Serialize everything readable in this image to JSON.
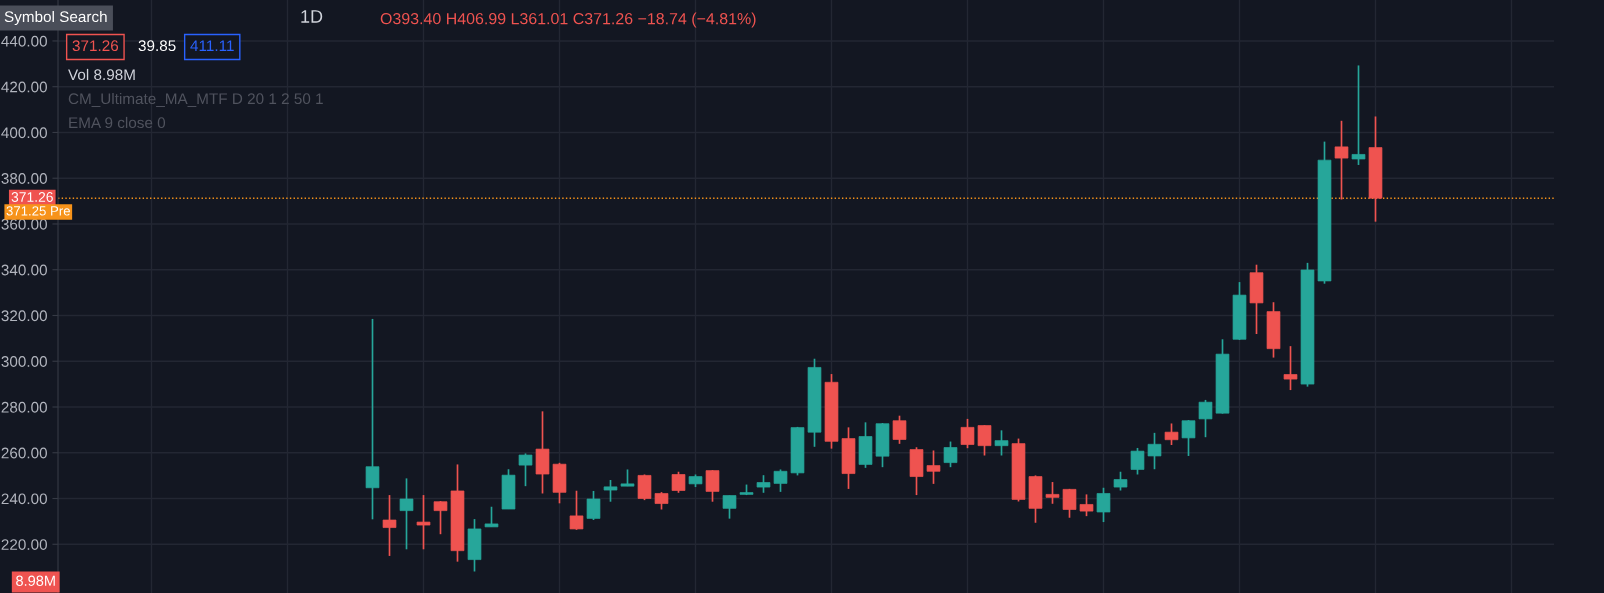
{
  "chart_data": {
    "type": "candlestick",
    "title": "1D",
    "categories": [
      null,
      null,
      null,
      null,
      null,
      null,
      null,
      null,
      null,
      null,
      null,
      null,
      null,
      null,
      null,
      null,
      null,
      null,
      null,
      null,
      null,
      null,
      null,
      null,
      null,
      null,
      null,
      null,
      null,
      null,
      null,
      null,
      null,
      null,
      null,
      null,
      null,
      null,
      null,
      null,
      null,
      null,
      null,
      null,
      null,
      null,
      null,
      null,
      null,
      null,
      null,
      null,
      null,
      null,
      null,
      null,
      null,
      null,
      null,
      null,
      null,
      null,
      null,
      null,
      null,
      null,
      null,
      null,
      null,
      null,
      null,
      null,
      null,
      null,
      null,
      null,
      null,
      null,
      null,
      null,
      null,
      null,
      null,
      null,
      null,
      null,
      null,
      null
    ],
    "ohlc": [
      null,
      null,
      null,
      null,
      null,
      null,
      null,
      null,
      null,
      null,
      null,
      null,
      null,
      null,
      null,
      null,
      null,
      null,
      [
        244.7,
        318.5,
        230.9,
        253.9
      ],
      [
        230.6,
        241.5,
        214.9,
        227.3
      ],
      [
        234.7,
        248.8,
        217.8,
        239.8
      ],
      [
        229.7,
        241.5,
        217.8,
        228.4
      ],
      [
        238.6,
        238.9,
        224.4,
        234.7
      ],
      [
        243.3,
        254.9,
        212.4,
        217.2
      ],
      [
        213.3,
        231.0,
        208.1,
        226.7
      ],
      [
        227.6,
        236.4,
        227.6,
        228.9
      ],
      [
        235.4,
        252.8,
        235.4,
        250.2
      ],
      [
        254.6,
        259.7,
        245.4,
        259.0
      ],
      [
        261.6,
        278.1,
        242.2,
        250.7
      ],
      [
        255.0,
        255.6,
        237.9,
        242.7
      ],
      [
        232.4,
        243.4,
        226.3,
        226.7
      ],
      [
        231.3,
        243.3,
        230.6,
        239.8
      ],
      [
        243.7,
        248.1,
        238.6,
        245.1
      ],
      [
        245.4,
        252.7,
        245.4,
        246.4
      ],
      [
        250.1,
        250.5,
        239.3,
        240.0
      ],
      [
        242.2,
        242.8,
        235.2,
        237.8
      ],
      [
        250.5,
        251.7,
        242.5,
        243.5
      ],
      [
        246.4,
        250.5,
        245.0,
        249.6
      ],
      [
        252.2,
        252.4,
        238.6,
        243.1
      ],
      [
        235.7,
        241.3,
        231.2,
        241.3
      ],
      [
        241.8,
        246.1,
        241.5,
        242.6
      ],
      [
        245.0,
        250.2,
        242.5,
        247.0
      ],
      [
        246.6,
        252.7,
        242.9,
        251.9
      ],
      [
        251.2,
        271.3,
        250.1,
        271.0
      ],
      [
        269.0,
        301.1,
        262.6,
        297.3
      ],
      [
        290.8,
        294.4,
        261.8,
        265.0
      ],
      [
        266.2,
        271.1,
        244.2,
        250.9
      ],
      [
        254.9,
        273.3,
        253.4,
        267.1
      ],
      [
        258.5,
        273.0,
        253.7,
        272.7
      ],
      [
        274.0,
        276.2,
        263.9,
        265.8
      ],
      [
        261.4,
        262.4,
        241.5,
        249.6
      ],
      [
        254.4,
        261.0,
        246.4,
        251.9
      ],
      [
        255.7,
        264.9,
        253.7,
        262.3
      ],
      [
        271.1,
        274.8,
        262.0,
        263.6
      ],
      [
        271.9,
        272.0,
        258.8,
        263.1
      ],
      [
        263.1,
        269.8,
        258.8,
        265.3
      ],
      [
        264.0,
        266.2,
        238.7,
        239.6
      ],
      [
        249.6,
        250.1,
        229.4,
        235.7
      ],
      [
        241.8,
        247.2,
        237.7,
        240.5
      ],
      [
        244.0,
        244.2,
        231.6,
        235.2
      ],
      [
        237.4,
        241.8,
        232.3,
        234.5
      ],
      [
        234.1,
        244.7,
        229.7,
        242.2
      ],
      [
        245.0,
        251.7,
        243.5,
        248.3
      ],
      [
        252.7,
        262.1,
        250.5,
        260.7
      ],
      [
        258.6,
        268.7,
        252.8,
        263.7
      ],
      [
        269.0,
        272.8,
        263.4,
        265.7
      ],
      [
        266.5,
        274.3,
        258.6,
        274.0
      ],
      [
        274.8,
        283.1,
        266.8,
        282.1
      ],
      [
        277.3,
        309.6,
        277.1,
        303.1
      ],
      [
        309.6,
        334.6,
        309.3,
        328.9
      ],
      [
        338.7,
        342.2,
        311.9,
        325.5
      ],
      [
        321.7,
        325.8,
        301.6,
        305.5
      ],
      [
        294.2,
        306.6,
        287.4,
        292.2
      ],
      [
        290.0,
        343.0,
        288.9,
        339.9
      ],
      [
        335.1,
        396.0,
        333.9,
        387.9
      ],
      [
        393.7,
        405.1,
        370.7,
        388.8
      ],
      [
        388.4,
        429.3,
        385.8,
        390.4
      ],
      [
        393.4,
        406.99,
        361.01,
        371.26
      ],
      null,
      null,
      null,
      null,
      null,
      null,
      null,
      null,
      null,
      null
    ],
    "colors": [
      null,
      null,
      null,
      null,
      null,
      null,
      null,
      null,
      null,
      null,
      null,
      null,
      null,
      null,
      null,
      null,
      null,
      null,
      "#26a69a",
      "#ef5350",
      "#26a69a",
      "#ef5350",
      "#ef5350",
      "#ef5350",
      "#26a69a",
      "#26a69a",
      "#26a69a",
      "#26a69a",
      "#ef5350",
      "#ef5350",
      "#ef5350",
      "#26a69a",
      "#26a69a",
      "#26a69a",
      "#ef5350",
      "#ef5350",
      "#ef5350",
      "#26a69a",
      "#ef5350",
      "#26a69a",
      "#26a69a",
      "#26a69a",
      "#26a69a",
      "#26a69a",
      "#26a69a",
      "#ef5350",
      "#ef5350",
      "#26a69a",
      "#26a69a",
      "#ef5350",
      "#ef5350",
      "#ef5350",
      "#26a69a",
      "#ef5350",
      "#ef5350",
      "#26a69a",
      "#ef5350",
      "#ef5350",
      "#ef5350",
      "#ef5350",
      "#ef5350",
      "#26a69a",
      "#26a69a",
      "#26a69a",
      "#26a69a",
      "#ef5350",
      "#26a69a",
      "#26a69a",
      "#26a69a",
      "#26a69a",
      "#ef5350",
      "#ef5350",
      "#ef5350",
      "#26a69a",
      "#26a69a",
      "#ef5350",
      "#26a69a",
      "#ef5350",
      null,
      null,
      null,
      null,
      null,
      null,
      null,
      null,
      null,
      null
    ],
    "ylim": [
      198.7,
      457.9
    ],
    "yticks": [
      {
        "value": 220,
        "label": "220.00"
      },
      {
        "value": 240,
        "label": "240.00"
      },
      {
        "value": 260,
        "label": "260.00"
      },
      {
        "value": 280,
        "label": "280.00"
      },
      {
        "value": 300,
        "label": "300.00"
      },
      {
        "value": 320,
        "label": "320.00"
      },
      {
        "value": 340,
        "label": "340.00"
      },
      {
        "value": 360,
        "label": "360.00"
      },
      {
        "value": 380,
        "label": "380.00"
      },
      {
        "value": 400,
        "label": "400.00"
      },
      {
        "value": 420,
        "label": "420.00"
      },
      {
        "value": 440,
        "label": "440.00"
      }
    ],
    "grid": true,
    "ref_lines": [
      {
        "axis": "y",
        "value": 371.26,
        "label": "371.26",
        "color": "#f7931a",
        "line_style": "dotted"
      }
    ],
    "annotations": [
      "Symbol Search",
      "O393.40 H406.99 L361.01 C371.26 −18.74 (−4.81%)",
      "371.26",
      "39.85",
      "411.11",
      "Vol 8.98M",
      "CM_Ultimate_MA_MTF D 20 1 2 50 1",
      "EMA 9 close 0",
      "371.25 Pre",
      "8.98M"
    ]
  }
}
